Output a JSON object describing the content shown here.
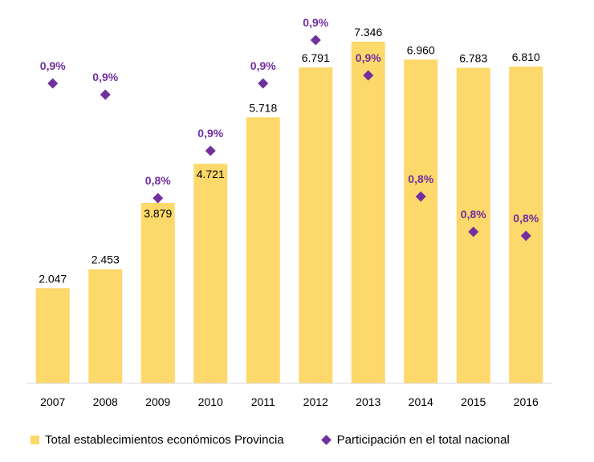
{
  "chart_data": {
    "type": "bar",
    "categories": [
      "2007",
      "2008",
      "2009",
      "2010",
      "2011",
      "2012",
      "2013",
      "2014",
      "2015",
      "2016"
    ],
    "series": [
      {
        "name": "Total establecimientos económicos Provincia",
        "type": "bar",
        "values": [
          2047,
          2453,
          3879,
          4721,
          5718,
          6791,
          7346,
          6960,
          6783,
          6810
        ],
        "labels": [
          "2.047",
          "2.453",
          "3.879",
          "4.721",
          "5.718",
          "6.791",
          "7.346",
          "6.960",
          "6.783",
          "6.810"
        ],
        "color": "#FDD86A"
      },
      {
        "name": "Participación en el total nacional",
        "type": "scatter",
        "marker": "diamond",
        "values": [
          0.9,
          0.9,
          0.8,
          0.9,
          0.9,
          0.9,
          0.9,
          0.8,
          0.8,
          0.8
        ],
        "labels": [
          "0,9%",
          "0,9%",
          "0,8%",
          "0,9%",
          "0,9%",
          "0,9%",
          "0,9%",
          "0,8%",
          "0,8%",
          "0,8%"
        ],
        "color": "#7030A0"
      }
    ],
    "title": "",
    "xlabel": "",
    "ylabel": "",
    "ylim": [
      0,
      8000
    ],
    "grid": false,
    "legend": "bottom"
  }
}
